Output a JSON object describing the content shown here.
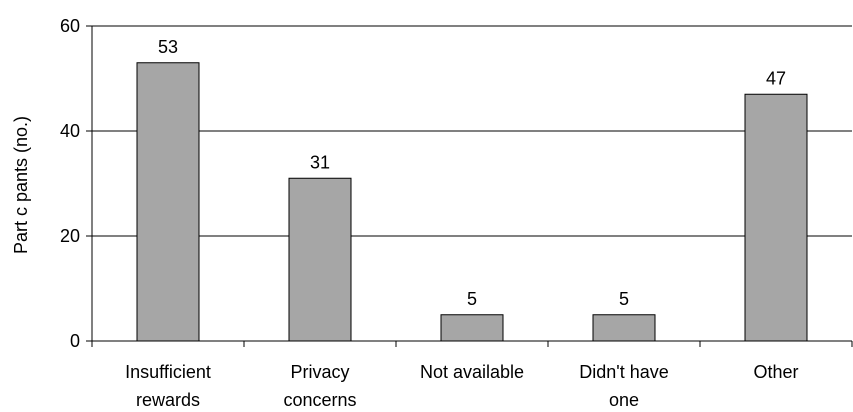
{
  "chart_data": {
    "type": "bar",
    "title": "",
    "xlabel": "",
    "ylabel": "Part c pants (no.)",
    "categories": [
      [
        "Insufficient",
        "rewards"
      ],
      [
        "Privacy",
        "concerns"
      ],
      [
        "Not available"
      ],
      [
        "Didn't have",
        "one"
      ],
      [
        "Other"
      ]
    ],
    "values": [
      53,
      31,
      5,
      5,
      47
    ],
    "ylim": [
      0,
      60
    ],
    "yticks": [
      0,
      20,
      40,
      60
    ],
    "grid": true,
    "legend": "none",
    "colors": {
      "bar": "#a6a6a6",
      "bar_stroke": "#000000",
      "grid": "#000000"
    }
  }
}
